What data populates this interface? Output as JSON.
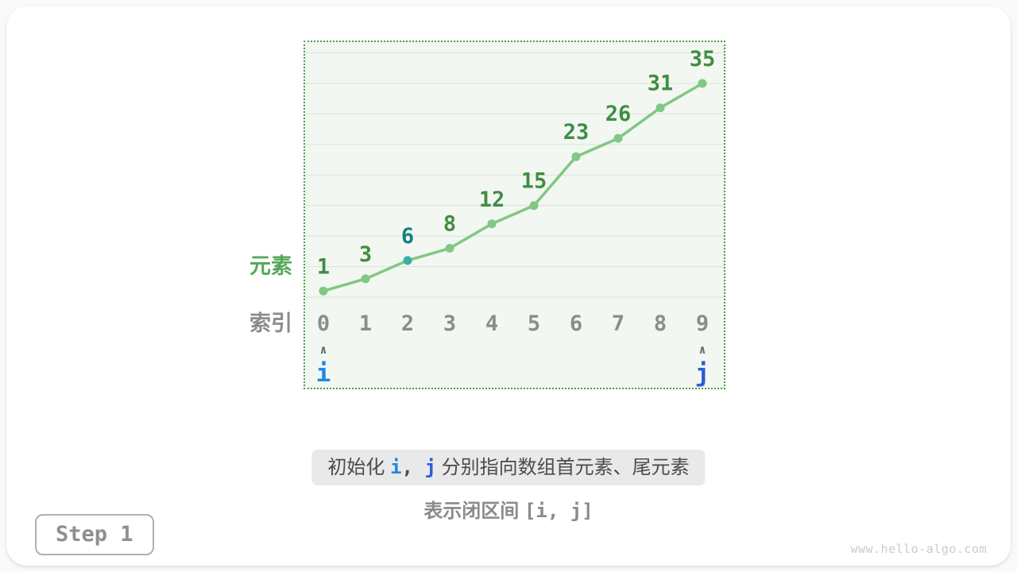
{
  "figure": {
    "step_badge": "Step 1",
    "watermark": "www.hello-algo.com"
  },
  "chart_data": {
    "type": "line",
    "x": [
      0,
      1,
      2,
      3,
      4,
      5,
      6,
      7,
      8,
      9
    ],
    "values": [
      1,
      3,
      6,
      8,
      12,
      15,
      23,
      26,
      31,
      35
    ],
    "highlight": {
      "index": 2,
      "dot_color": "#3aada5",
      "label_color": "#17807e"
    },
    "ylim": [
      0,
      40
    ],
    "gridline_step": 5,
    "grid": true,
    "row_labels": {
      "elements": "元素",
      "indices": "索引"
    },
    "pointers": [
      {
        "label": "i",
        "index": 0,
        "color": "#1e88e5"
      },
      {
        "label": "j",
        "index": 9,
        "color": "#2e5bd9"
      }
    ],
    "pointer_caret": "∧",
    "colors": {
      "line": "#82c784",
      "dot": "#82c784",
      "value_label": "#3e8e44",
      "index_label": "#8c8c8c",
      "grid_line": "#dde4dc",
      "plot_bg": "#f2f7f1",
      "border": "#49a24d",
      "elements_label": "#56a85a",
      "caret": "#666666"
    }
  },
  "captions": {
    "step_text": {
      "prefix": "初始化 ",
      "pointer_i": "i",
      "separator": ", ",
      "pointer_j": "j",
      "suffix": " 分别指向数组首元素、尾元素"
    },
    "interval_text": {
      "prefix": "表示闭区间 ",
      "interval": "[i, j]"
    }
  }
}
